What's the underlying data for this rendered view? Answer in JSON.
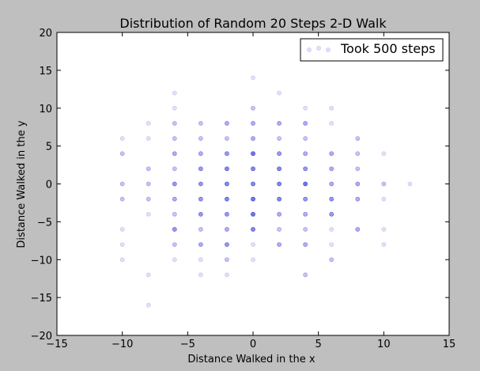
{
  "chart_data": {
    "type": "scatter",
    "title": "Distribution of Random 20 Steps 2-D Walk",
    "xlabel": "Distance Walked in the x",
    "ylabel": "Distance Walked in the y",
    "xlim": [
      -15,
      15
    ],
    "ylim": [
      -20,
      20
    ],
    "xticks": [
      -15,
      -10,
      -5,
      0,
      5,
      10,
      15
    ],
    "yticks": [
      -20,
      -15,
      -10,
      -5,
      0,
      5,
      10,
      15,
      20
    ],
    "xtick_labels": [
      "−15",
      "−10",
      "−5",
      "0",
      "5",
      "10",
      "15"
    ],
    "ytick_labels": [
      "−20",
      "−15",
      "−10",
      "−5",
      "0",
      "5",
      "10",
      "15",
      "20"
    ],
    "grid": false,
    "legend_position": "top-right",
    "series": [
      {
        "name": "Took 500 steps",
        "color": "#0000cc",
        "points": [
          [
            -10,
            6,
            1
          ],
          [
            -10,
            4,
            2
          ],
          [
            -10,
            0,
            2
          ],
          [
            -10,
            -2,
            2
          ],
          [
            -10,
            -6,
            1
          ],
          [
            -10,
            -8,
            1
          ],
          [
            -10,
            -10,
            1
          ],
          [
            -8,
            8,
            1
          ],
          [
            -8,
            6,
            1
          ],
          [
            -8,
            2,
            2
          ],
          [
            -8,
            0,
            2
          ],
          [
            -8,
            -2,
            2
          ],
          [
            -8,
            -4,
            1
          ],
          [
            -8,
            -12,
            1
          ],
          [
            -8,
            -16,
            1
          ],
          [
            -6,
            12,
            1
          ],
          [
            -6,
            10,
            1
          ],
          [
            -6,
            8,
            2
          ],
          [
            -6,
            6,
            2
          ],
          [
            -6,
            4,
            3
          ],
          [
            -6,
            2,
            2
          ],
          [
            -6,
            0,
            4
          ],
          [
            -6,
            -2,
            3
          ],
          [
            -6,
            -4,
            2
          ],
          [
            -6,
            -6,
            4
          ],
          [
            -6,
            -8,
            2
          ],
          [
            -6,
            -10,
            1
          ],
          [
            -4,
            8,
            2
          ],
          [
            -4,
            6,
            2
          ],
          [
            -4,
            4,
            3
          ],
          [
            -4,
            2,
            4
          ],
          [
            -4,
            0,
            4
          ],
          [
            -4,
            -2,
            4
          ],
          [
            -4,
            -4,
            4
          ],
          [
            -4,
            -6,
            2
          ],
          [
            -4,
            -8,
            3
          ],
          [
            -4,
            -10,
            1
          ],
          [
            -4,
            -12,
            1
          ],
          [
            -2,
            8,
            3
          ],
          [
            -2,
            6,
            2
          ],
          [
            -2,
            4,
            4
          ],
          [
            -2,
            2,
            5
          ],
          [
            -2,
            0,
            5
          ],
          [
            -2,
            -2,
            5
          ],
          [
            -2,
            -4,
            4
          ],
          [
            -2,
            -6,
            3
          ],
          [
            -2,
            -8,
            4
          ],
          [
            -2,
            -10,
            2
          ],
          [
            -2,
            -12,
            1
          ],
          [
            0,
            14,
            1
          ],
          [
            0,
            10,
            2
          ],
          [
            0,
            8,
            3
          ],
          [
            0,
            6,
            3
          ],
          [
            0,
            4,
            6
          ],
          [
            0,
            2,
            5
          ],
          [
            0,
            0,
            5
          ],
          [
            0,
            -2,
            6
          ],
          [
            0,
            -4,
            6
          ],
          [
            0,
            -6,
            5
          ],
          [
            0,
            -8,
            1
          ],
          [
            0,
            -10,
            1
          ],
          [
            2,
            12,
            1
          ],
          [
            2,
            8,
            3
          ],
          [
            2,
            6,
            2
          ],
          [
            2,
            4,
            4
          ],
          [
            2,
            2,
            5
          ],
          [
            2,
            0,
            5
          ],
          [
            2,
            -2,
            5
          ],
          [
            2,
            -4,
            3
          ],
          [
            2,
            -6,
            2
          ],
          [
            2,
            -8,
            3
          ],
          [
            4,
            10,
            1
          ],
          [
            4,
            8,
            3
          ],
          [
            4,
            6,
            2
          ],
          [
            4,
            4,
            3
          ],
          [
            4,
            2,
            4
          ],
          [
            4,
            0,
            6
          ],
          [
            4,
            -2,
            4
          ],
          [
            4,
            -4,
            3
          ],
          [
            4,
            -6,
            2
          ],
          [
            4,
            -8,
            3
          ],
          [
            4,
            -12,
            2
          ],
          [
            6,
            10,
            1
          ],
          [
            6,
            8,
            1
          ],
          [
            6,
            4,
            3
          ],
          [
            6,
            2,
            3
          ],
          [
            6,
            0,
            3
          ],
          [
            6,
            -2,
            4
          ],
          [
            6,
            -4,
            4
          ],
          [
            6,
            -6,
            1
          ],
          [
            6,
            -8,
            1
          ],
          [
            6,
            -10,
            2
          ],
          [
            8,
            6,
            2
          ],
          [
            8,
            4,
            2
          ],
          [
            8,
            2,
            2
          ],
          [
            8,
            0,
            3
          ],
          [
            8,
            -2,
            3
          ],
          [
            8,
            -6,
            3
          ],
          [
            10,
            4,
            1
          ],
          [
            10,
            0,
            2
          ],
          [
            10,
            -2,
            1
          ],
          [
            10,
            -6,
            1
          ],
          [
            10,
            -8,
            1
          ],
          [
            12,
            0,
            1
          ]
        ]
      }
    ]
  }
}
